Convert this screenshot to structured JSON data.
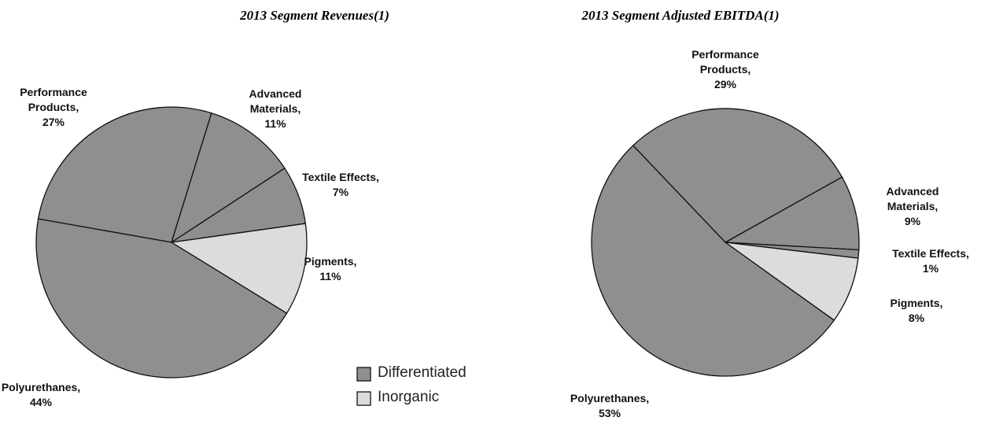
{
  "legend": [
    {
      "name": "Differentiated",
      "color": "#8f8f8f"
    },
    {
      "name": "Inorganic",
      "color": "#dcdcdc"
    }
  ],
  "chart_data": [
    {
      "type": "pie",
      "title": "2013 Segment Revenues(1)",
      "categories": [
        "Performance Products,",
        "Advanced Materials,",
        "Textile Effects,",
        "Pigments,",
        "Polyurethanes,"
      ],
      "values": [
        27,
        11,
        7,
        11,
        44
      ],
      "value_labels": [
        "27%",
        "11%",
        "7%",
        "11%",
        "44%"
      ],
      "colors": [
        "#8f8f8f",
        "#8f8f8f",
        "#8f8f8f",
        "#dcdcdc",
        "#8f8f8f"
      ]
    },
    {
      "type": "pie",
      "title": "2013 Segment Adjusted EBITDA(1)",
      "categories": [
        "Performance Products,",
        "Advanced Materials,",
        "Textile Effects,",
        "Pigments,",
        "Polyurethanes,"
      ],
      "values": [
        29,
        9,
        1,
        8,
        53
      ],
      "value_labels": [
        "29%",
        "9%",
        "1%",
        "8%",
        "53%"
      ],
      "colors": [
        "#8f8f8f",
        "#8f8f8f",
        "#8f8f8f",
        "#dcdcdc",
        "#8f8f8f"
      ]
    }
  ]
}
